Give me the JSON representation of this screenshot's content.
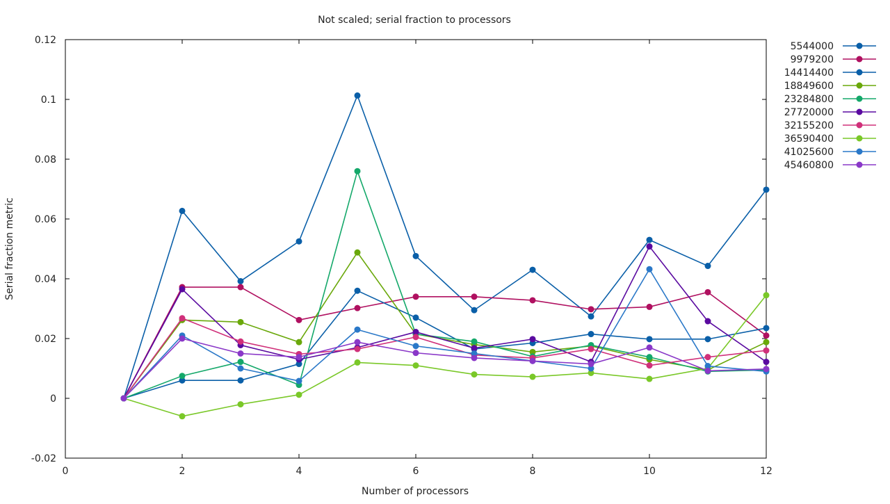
{
  "chart_data": {
    "type": "line",
    "title": "Not scaled; serial fraction to processors",
    "xlabel": "Number of processors",
    "ylabel": "Serial fraction metric",
    "xlim": [
      0,
      12
    ],
    "ylim": [
      -0.02,
      0.12
    ],
    "xticks": [
      0,
      2,
      4,
      6,
      8,
      10,
      12
    ],
    "xtick_labels": [
      "0",
      "2",
      "4",
      "6",
      "8",
      "10",
      "12"
    ],
    "yticks": [
      -0.02,
      0,
      0.02,
      0.04,
      0.06,
      0.08,
      0.1,
      0.12
    ],
    "ytick_labels": [
      "-0.02",
      "0",
      "0.02",
      "0.04",
      "0.06",
      "0.08",
      "0.1",
      "0.12"
    ],
    "grid": false,
    "legend_position": "outside-right",
    "x": [
      1,
      2,
      3,
      4,
      5,
      6,
      7,
      8,
      9,
      10,
      11,
      12
    ],
    "series": [
      {
        "name": "5544000",
        "color": "#0a5fa8",
        "values": [
          0,
          0.0627,
          0.0392,
          0.0525,
          0.1013,
          0.0476,
          0.0295,
          0.043,
          0.0274,
          0.053,
          0.0443,
          0.0698
        ]
      },
      {
        "name": "9979200",
        "color": "#b01060",
        "values": [
          0,
          0.0372,
          0.0372,
          0.0262,
          0.0302,
          0.034,
          0.034,
          0.0328,
          0.0298,
          0.0306,
          0.0355,
          0.021
        ]
      },
      {
        "name": "14414400",
        "color": "#0a5fa8",
        "values": [
          0,
          0.006,
          0.006,
          0.0115,
          0.036,
          0.027,
          0.0165,
          0.0185,
          0.0215,
          0.0198,
          0.0198,
          0.0235
        ]
      },
      {
        "name": "18849600",
        "color": "#6aa80a",
        "values": [
          0,
          0.0262,
          0.0255,
          0.0188,
          0.0488,
          0.0215,
          0.018,
          0.0155,
          0.0175,
          0.013,
          0.0095,
          0.0188
        ]
      },
      {
        "name": "23284800",
        "color": "#14a86a",
        "values": [
          0,
          0.0075,
          0.0122,
          0.0045,
          0.076,
          0.0215,
          0.019,
          0.014,
          0.0178,
          0.0138,
          0.009,
          0.0095
        ]
      },
      {
        "name": "27720000",
        "color": "#5a0aa0",
        "values": [
          0,
          0.0365,
          0.0178,
          0.013,
          0.017,
          0.0222,
          0.0168,
          0.0198,
          0.0122,
          0.0508,
          0.0258,
          0.0122
        ]
      },
      {
        "name": "32155200",
        "color": "#d0307a",
        "values": [
          0,
          0.0268,
          0.019,
          0.0148,
          0.0165,
          0.0205,
          0.0145,
          0.0135,
          0.0165,
          0.011,
          0.0138,
          0.016
        ]
      },
      {
        "name": "36590400",
        "color": "#7ac828",
        "values": [
          0,
          -0.006,
          -0.002,
          0.0012,
          0.012,
          0.011,
          0.008,
          0.0072,
          0.0085,
          0.0065,
          0.01,
          0.0345
        ]
      },
      {
        "name": "41025600",
        "color": "#2a78c8",
        "values": [
          0,
          0.021,
          0.01,
          0.0058,
          0.023,
          0.0175,
          0.015,
          0.0125,
          0.01,
          0.0432,
          0.0108,
          0.009
        ]
      },
      {
        "name": "45460800",
        "color": "#8a38c8",
        "values": [
          0,
          0.02,
          0.015,
          0.0138,
          0.0188,
          0.0152,
          0.0135,
          0.0125,
          0.0115,
          0.017,
          0.0092,
          0.0098
        ]
      }
    ]
  }
}
